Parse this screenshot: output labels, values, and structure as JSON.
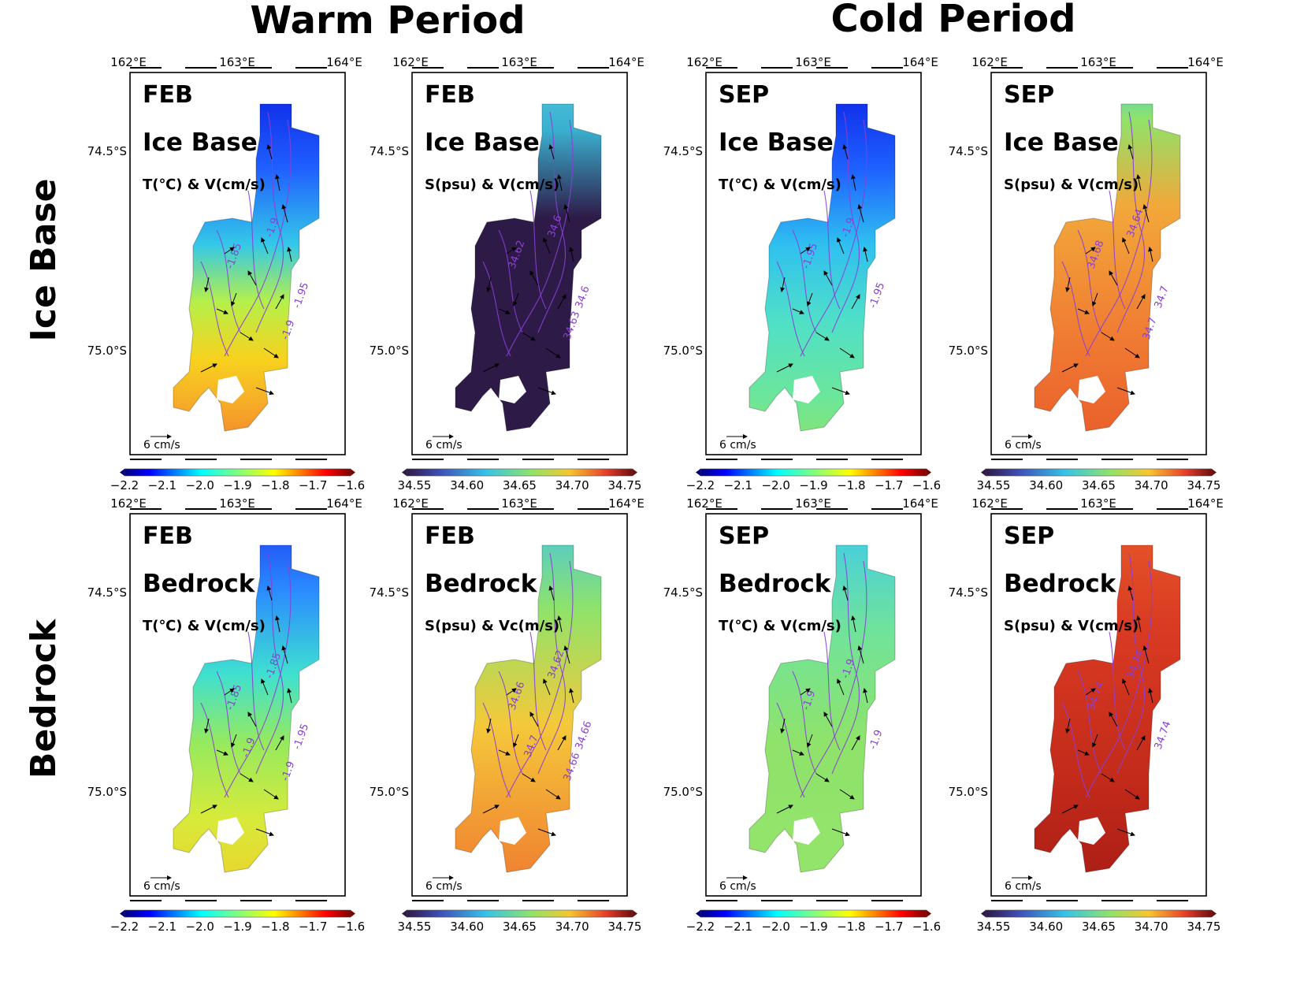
{
  "titles": {
    "warm": "Warm Period",
    "cold": "Cold Period",
    "row_ice": "Ice Base",
    "row_bed": "Bedrock"
  },
  "axes": {
    "lon_ticks": [
      "162°E",
      "163°E",
      "164°E"
    ],
    "lat_ticks": [
      "74.5°S",
      "75.0°S"
    ]
  },
  "scale_label": "6 cm/s",
  "colorbars": {
    "temperature": [
      "−2.2",
      "−2.1",
      "−2.0",
      "−1.9",
      "−1.8",
      "−1.7",
      "−1.6"
    ],
    "salinity": [
      "34.55",
      "34.60",
      "34.65",
      "34.70",
      "34.75"
    ]
  },
  "colors": {
    "contour": "#8a3fd6",
    "salinity_low": "#2e1a47",
    "jet": [
      "#00007f",
      "#0000ff",
      "#007fff",
      "#00ffff",
      "#7fff7f",
      "#ffff00",
      "#ff7f00",
      "#ff0000",
      "#7f0000"
    ]
  },
  "panels": [
    {
      "month": "FEB",
      "layer": "Ice Base",
      "variable": "T(℃) & V(cm/s)",
      "type": "T",
      "contours": [
        "-1.9",
        "-1.95",
        "-1.85",
        "-1.9"
      ]
    },
    {
      "month": "FEB",
      "layer": "Ice Base",
      "variable": "S(psu) & V(cm/s)",
      "type": "S",
      "contours": [
        "34.6",
        "34.6",
        "34.62",
        "34.63"
      ]
    },
    {
      "month": "SEP",
      "layer": "Ice Base",
      "variable": "T(℃) & V(cm/s)",
      "type": "T",
      "contours": [
        "-1.9",
        "-1.95",
        "-1.95"
      ]
    },
    {
      "month": "SEP",
      "layer": "Ice Base",
      "variable": "S(psu) & V(cm/s)",
      "type": "S",
      "contours": [
        "34.64",
        "34.7",
        "34.68",
        "34.7"
      ]
    },
    {
      "month": "FEB",
      "layer": "Bedrock",
      "variable": "T(℃) & V(cm/s)",
      "type": "T",
      "contours": [
        "-1.85",
        "-1.95",
        "-1.85",
        "-1.9",
        "-1.9"
      ]
    },
    {
      "month": "FEB",
      "layer": "Bedrock",
      "variable": "S(psu) & Vc(m/s)",
      "type": "S",
      "contours": [
        "34.62",
        "34.66",
        "34.66",
        "34.66",
        "34.7"
      ]
    },
    {
      "month": "SEP",
      "layer": "Bedrock",
      "variable": "T(℃) & V(cm/s)",
      "type": "T",
      "contours": [
        "-1.9",
        "-1.9",
        "-1.9"
      ]
    },
    {
      "month": "SEP",
      "layer": "Bedrock",
      "variable": "S(psu) & V(cm/s)",
      "type": "S",
      "contours": [
        "34.74",
        "34.74",
        "34.74"
      ]
    }
  ],
  "chart_data": {
    "type": "heatmap",
    "panels": [
      {
        "period": "Warm Period",
        "month": "FEB",
        "layer": "Ice Base",
        "variable": "T(℃) & V(cm/s)",
        "colorbar_range": [
          -2.2,
          -1.6
        ],
        "contour_labels": [
          -1.9,
          -1.95,
          -1.85
        ]
      },
      {
        "period": "Warm Period",
        "month": "FEB",
        "layer": "Ice Base",
        "variable": "S(psu) & V(cm/s)",
        "colorbar_range": [
          34.55,
          34.75
        ],
        "contour_labels": [
          34.6,
          34.62,
          34.63
        ]
      },
      {
        "period": "Cold Period",
        "month": "SEP",
        "layer": "Ice Base",
        "variable": "T(℃) & V(cm/s)",
        "colorbar_range": [
          -2.2,
          -1.6
        ],
        "contour_labels": [
          -1.9,
          -1.95
        ]
      },
      {
        "period": "Cold Period",
        "month": "SEP",
        "layer": "Ice Base",
        "variable": "S(psu) & V(cm/s)",
        "colorbar_range": [
          34.55,
          34.75
        ],
        "contour_labels": [
          34.64,
          34.68,
          34.7
        ]
      },
      {
        "period": "Warm Period",
        "month": "FEB",
        "layer": "Bedrock",
        "variable": "T(℃) & V(cm/s)",
        "colorbar_range": [
          -2.2,
          -1.6
        ],
        "contour_labels": [
          -1.85,
          -1.9,
          -1.95
        ]
      },
      {
        "period": "Warm Period",
        "month": "FEB",
        "layer": "Bedrock",
        "variable": "S(psu) & Vc(m/s)",
        "colorbar_range": [
          34.55,
          34.75
        ],
        "contour_labels": [
          34.62,
          34.66,
          34.7
        ]
      },
      {
        "period": "Cold Period",
        "month": "SEP",
        "layer": "Bedrock",
        "variable": "T(℃) & V(cm/s)",
        "colorbar_range": [
          -2.2,
          -1.6
        ],
        "contour_labels": [
          -1.9
        ]
      },
      {
        "period": "Cold Period",
        "month": "SEP",
        "layer": "Bedrock",
        "variable": "S(psu) & V(cm/s)",
        "colorbar_range": [
          34.55,
          34.75
        ],
        "contour_labels": [
          34.74
        ]
      }
    ],
    "x_axis": {
      "label": "",
      "ticks": [
        "162°E",
        "163°E",
        "164°E"
      ],
      "range": [
        162,
        164
      ]
    },
    "y_axis": {
      "label": "",
      "ticks": [
        "74.5°S",
        "75.0°S"
      ],
      "range": [
        74.25,
        75.35
      ]
    },
    "reference_vector": "6 cm/s"
  }
}
